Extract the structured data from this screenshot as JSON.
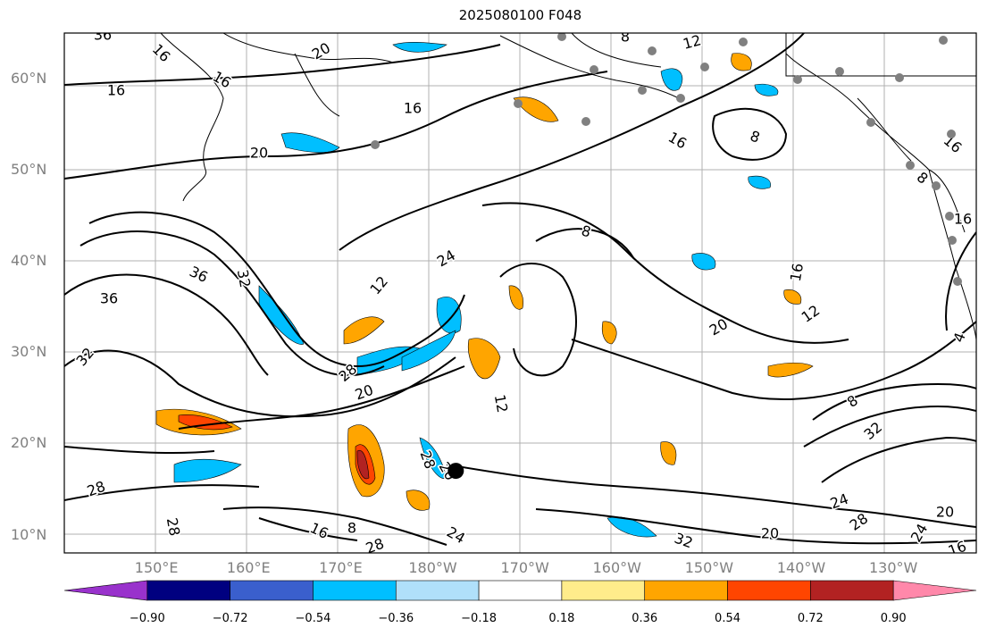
{
  "title": "2025080100 F048",
  "lat_labels": [
    {
      "text": "60°N",
      "lat": 60
    },
    {
      "text": "50°N",
      "lat": 50
    },
    {
      "text": "40°N",
      "lat": 40
    },
    {
      "text": "30°N",
      "lat": 30
    },
    {
      "text": "20°N",
      "lat": 20
    },
    {
      "text": "10°N",
      "lat": 10
    }
  ],
  "lon_labels": [
    {
      "text": "150°E",
      "lon": 150
    },
    {
      "text": "160°E",
      "lon": 160
    },
    {
      "text": "170°E",
      "lon": 170
    },
    {
      "text": "180°W",
      "lon": 180
    },
    {
      "text": "170°W",
      "lon": 190
    },
    {
      "text": "160°W",
      "lon": 200
    },
    {
      "text": "150°W",
      "lon": 210
    },
    {
      "text": "140°W",
      "lon": 220
    },
    {
      "text": "130°W",
      "lon": 230
    }
  ],
  "extent": {
    "lon_min": 140,
    "lon_max": 239,
    "lat_min": 8,
    "lat_max": 65
  },
  "colorbar": {
    "colors": [
      "#9932cc",
      "#000080",
      "#3a5fcd",
      "#00bfff",
      "#b0e0fa",
      "#ffffff",
      "#ffec8b",
      "#ffa500",
      "#ff4500",
      "#b22222",
      "#ff88aa"
    ],
    "tick_labels": [
      "−0.90",
      "−0.72",
      "−0.54",
      "−0.36",
      "−0.18",
      "0.18",
      "0.36",
      "0.54",
      "0.72",
      "0.90"
    ]
  },
  "contour_labels": [
    "16",
    "20",
    "16",
    "16",
    "20",
    "16",
    "12",
    "8",
    "8",
    "16",
    "8",
    "16",
    "36",
    "32",
    "36",
    "12",
    "24",
    "8",
    "16",
    "12",
    "20",
    "32",
    "28",
    "20",
    "12",
    "8",
    "32",
    "28",
    "28",
    "28",
    "8",
    "16",
    "28",
    "24",
    "20",
    "24",
    "20",
    "24",
    "28",
    "20",
    "16",
    "32",
    "4",
    "16",
    "36"
  ],
  "storm_marker": {
    "lon": 182.5,
    "lat": 17
  }
}
